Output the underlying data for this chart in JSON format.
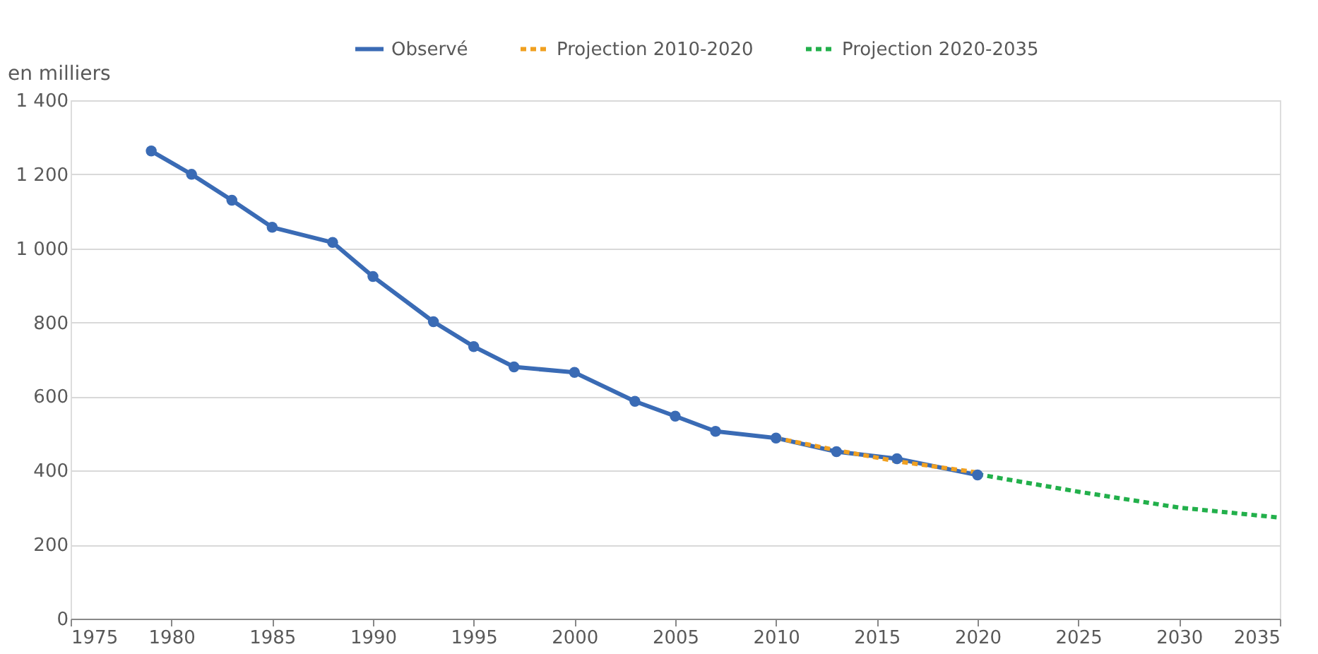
{
  "chart_data": {
    "type": "line",
    "ylabel": "en milliers",
    "series": [
      {
        "name": "Observé",
        "color": "#3a6bb5",
        "marker": "circle",
        "line_style": "solid",
        "x": [
          1979,
          1981,
          1983,
          1985,
          1988,
          1990,
          1993,
          1995,
          1997,
          2000,
          2003,
          2005,
          2007,
          2010,
          2013,
          2016,
          2020
        ],
        "values": [
          1263,
          1200,
          1130,
          1057,
          1016,
          924,
          802,
          735,
          680,
          665,
          587,
          547,
          506,
          488,
          451,
          432,
          388
        ]
      },
      {
        "name": "Projection 2010-2020",
        "color": "#f0a020",
        "marker": "none",
        "line_style": "dashed",
        "x": [
          2010,
          2013,
          2016,
          2020
        ],
        "values": [
          488,
          455,
          425,
          395
        ]
      },
      {
        "name": "Projection 2020-2035",
        "color": "#22b04b",
        "marker": "none",
        "line_style": "dashed",
        "x": [
          2020,
          2025,
          2030,
          2035
        ],
        "values": [
          390,
          343,
          300,
          273
        ]
      }
    ],
    "xlim": [
      1975,
      2035
    ],
    "xticks": [
      1975,
      1980,
      1985,
      1990,
      1995,
      2000,
      2005,
      2010,
      2015,
      2020,
      2025,
      2030,
      2035
    ],
    "ylim": [
      0,
      1400
    ],
    "yticks": [
      0,
      200,
      400,
      600,
      800,
      {
        "value": 1000,
        "label": "1 000"
      },
      {
        "value": 1200,
        "label": "1 200"
      },
      {
        "value": 1400,
        "label": "1 400"
      }
    ],
    "grid": "y",
    "legend": "top"
  }
}
